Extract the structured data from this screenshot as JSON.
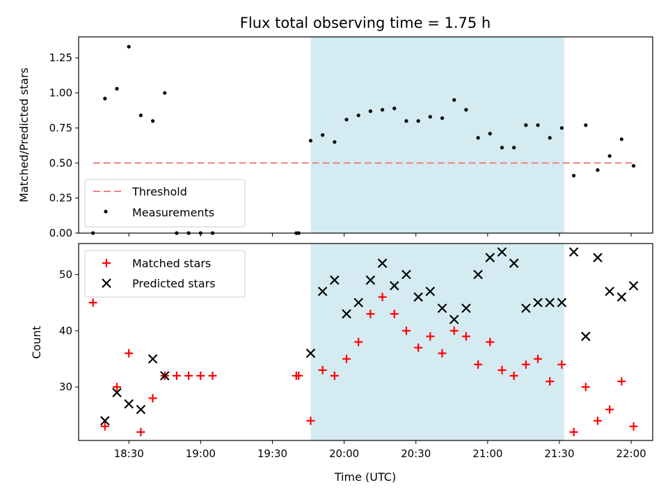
{
  "chart_data": [
    {
      "type": "scatter",
      "title": "Flux total observing time = 1.75 h",
      "xlabel": "",
      "ylabel": "Matched/Predicted stars",
      "ylim": [
        0,
        1.4
      ],
      "yticks": [
        "0.00",
        "0.25",
        "0.50",
        "0.75",
        "1.00",
        "1.25"
      ],
      "ytick_values": [
        0,
        0.25,
        0.5,
        0.75,
        1.0,
        1.25
      ],
      "legend_position": "lower-left",
      "highlight_span": [
        "19:46",
        "21:32"
      ],
      "highlight_color": "#d4ebf2",
      "threshold": {
        "name": "Threshold",
        "value": 0.5,
        "x_range": [
          "18:15",
          "22:02"
        ],
        "color": "#f08080",
        "style": "dashed"
      },
      "series": [
        {
          "name": "Measurements",
          "marker": "dot",
          "color": "#000000",
          "x": [
            "18:15",
            "18:20",
            "18:25",
            "18:30",
            "18:35",
            "18:40",
            "18:45",
            "18:50",
            "18:55",
            "19:00",
            "19:05",
            "19:40",
            "19:41",
            "19:46",
            "19:51",
            "19:56",
            "20:01",
            "20:06",
            "20:11",
            "20:16",
            "20:21",
            "20:26",
            "20:31",
            "20:36",
            "20:41",
            "20:46",
            "20:51",
            "20:56",
            "21:01",
            "21:06",
            "21:11",
            "21:16",
            "21:21",
            "21:26",
            "21:31",
            "21:36",
            "21:41",
            "21:46",
            "21:51",
            "21:56",
            "22:01"
          ],
          "y": [
            0.0,
            0.96,
            1.03,
            1.33,
            0.84,
            0.8,
            1.0,
            0.0,
            0.0,
            0.0,
            0.0,
            0.0,
            0.0,
            0.66,
            0.7,
            0.65,
            0.81,
            0.84,
            0.87,
            0.88,
            0.89,
            0.8,
            0.8,
            0.83,
            0.82,
            0.95,
            0.88,
            0.68,
            0.71,
            0.61,
            0.61,
            0.77,
            0.77,
            0.68,
            0.75,
            0.41,
            0.77,
            0.45,
            0.55,
            0.67,
            0.48
          ]
        }
      ]
    },
    {
      "type": "scatter",
      "title": "",
      "xlabel": "Time (UTC)",
      "ylabel": "Count",
      "ylim": [
        20.5,
        55.5
      ],
      "yticks": [
        "30",
        "40",
        "50"
      ],
      "ytick_values": [
        30,
        40,
        50
      ],
      "xlim": [
        "18:09",
        "22:09"
      ],
      "xticks": [
        "18:30",
        "19:00",
        "19:30",
        "20:00",
        "20:30",
        "21:00",
        "21:30",
        "22:00"
      ],
      "legend_position": "upper-left",
      "highlight_span": [
        "19:46",
        "21:32"
      ],
      "highlight_color": "#d4ebf2",
      "series": [
        {
          "name": "Matched stars",
          "marker": "plus",
          "color": "#ff0000",
          "x": [
            "18:15",
            "18:20",
            "18:25",
            "18:30",
            "18:35",
            "18:40",
            "18:45",
            "18:50",
            "18:55",
            "19:00",
            "19:05",
            "19:40",
            "19:41",
            "19:46",
            "19:51",
            "19:56",
            "20:01",
            "20:06",
            "20:11",
            "20:16",
            "20:21",
            "20:26",
            "20:31",
            "20:36",
            "20:41",
            "20:46",
            "20:51",
            "20:56",
            "21:01",
            "21:06",
            "21:11",
            "21:16",
            "21:21",
            "21:26",
            "21:31",
            "21:36",
            "21:41",
            "21:46",
            "21:51",
            "21:56",
            "22:01"
          ],
          "y": [
            45,
            23,
            30,
            36,
            22,
            28,
            32,
            32,
            32,
            32,
            32,
            32,
            32,
            24,
            33,
            32,
            35,
            38,
            43,
            46,
            43,
            40,
            37,
            39,
            36,
            40,
            39,
            34,
            38,
            33,
            32,
            34,
            35,
            31,
            34,
            22,
            30,
            24,
            26,
            31,
            23
          ]
        },
        {
          "name": "Predicted stars",
          "marker": "x",
          "color": "#000000",
          "x": [
            "18:20",
            "18:25",
            "18:30",
            "18:35",
            "18:40",
            "18:45",
            "19:46",
            "19:51",
            "19:56",
            "20:01",
            "20:06",
            "20:11",
            "20:16",
            "20:21",
            "20:26",
            "20:31",
            "20:36",
            "20:41",
            "20:46",
            "20:51",
            "20:56",
            "21:01",
            "21:06",
            "21:11",
            "21:16",
            "21:21",
            "21:26",
            "21:31",
            "21:36",
            "21:41",
            "21:46",
            "21:51",
            "21:56",
            "22:01"
          ],
          "y": [
            24,
            29,
            27,
            26,
            35,
            32,
            36,
            47,
            49,
            43,
            45,
            49,
            52,
            48,
            50,
            46,
            47,
            44,
            42,
            44,
            50,
            53,
            54,
            52,
            44,
            45,
            45,
            45,
            54,
            39,
            53,
            47,
            46,
            48
          ]
        }
      ]
    }
  ]
}
